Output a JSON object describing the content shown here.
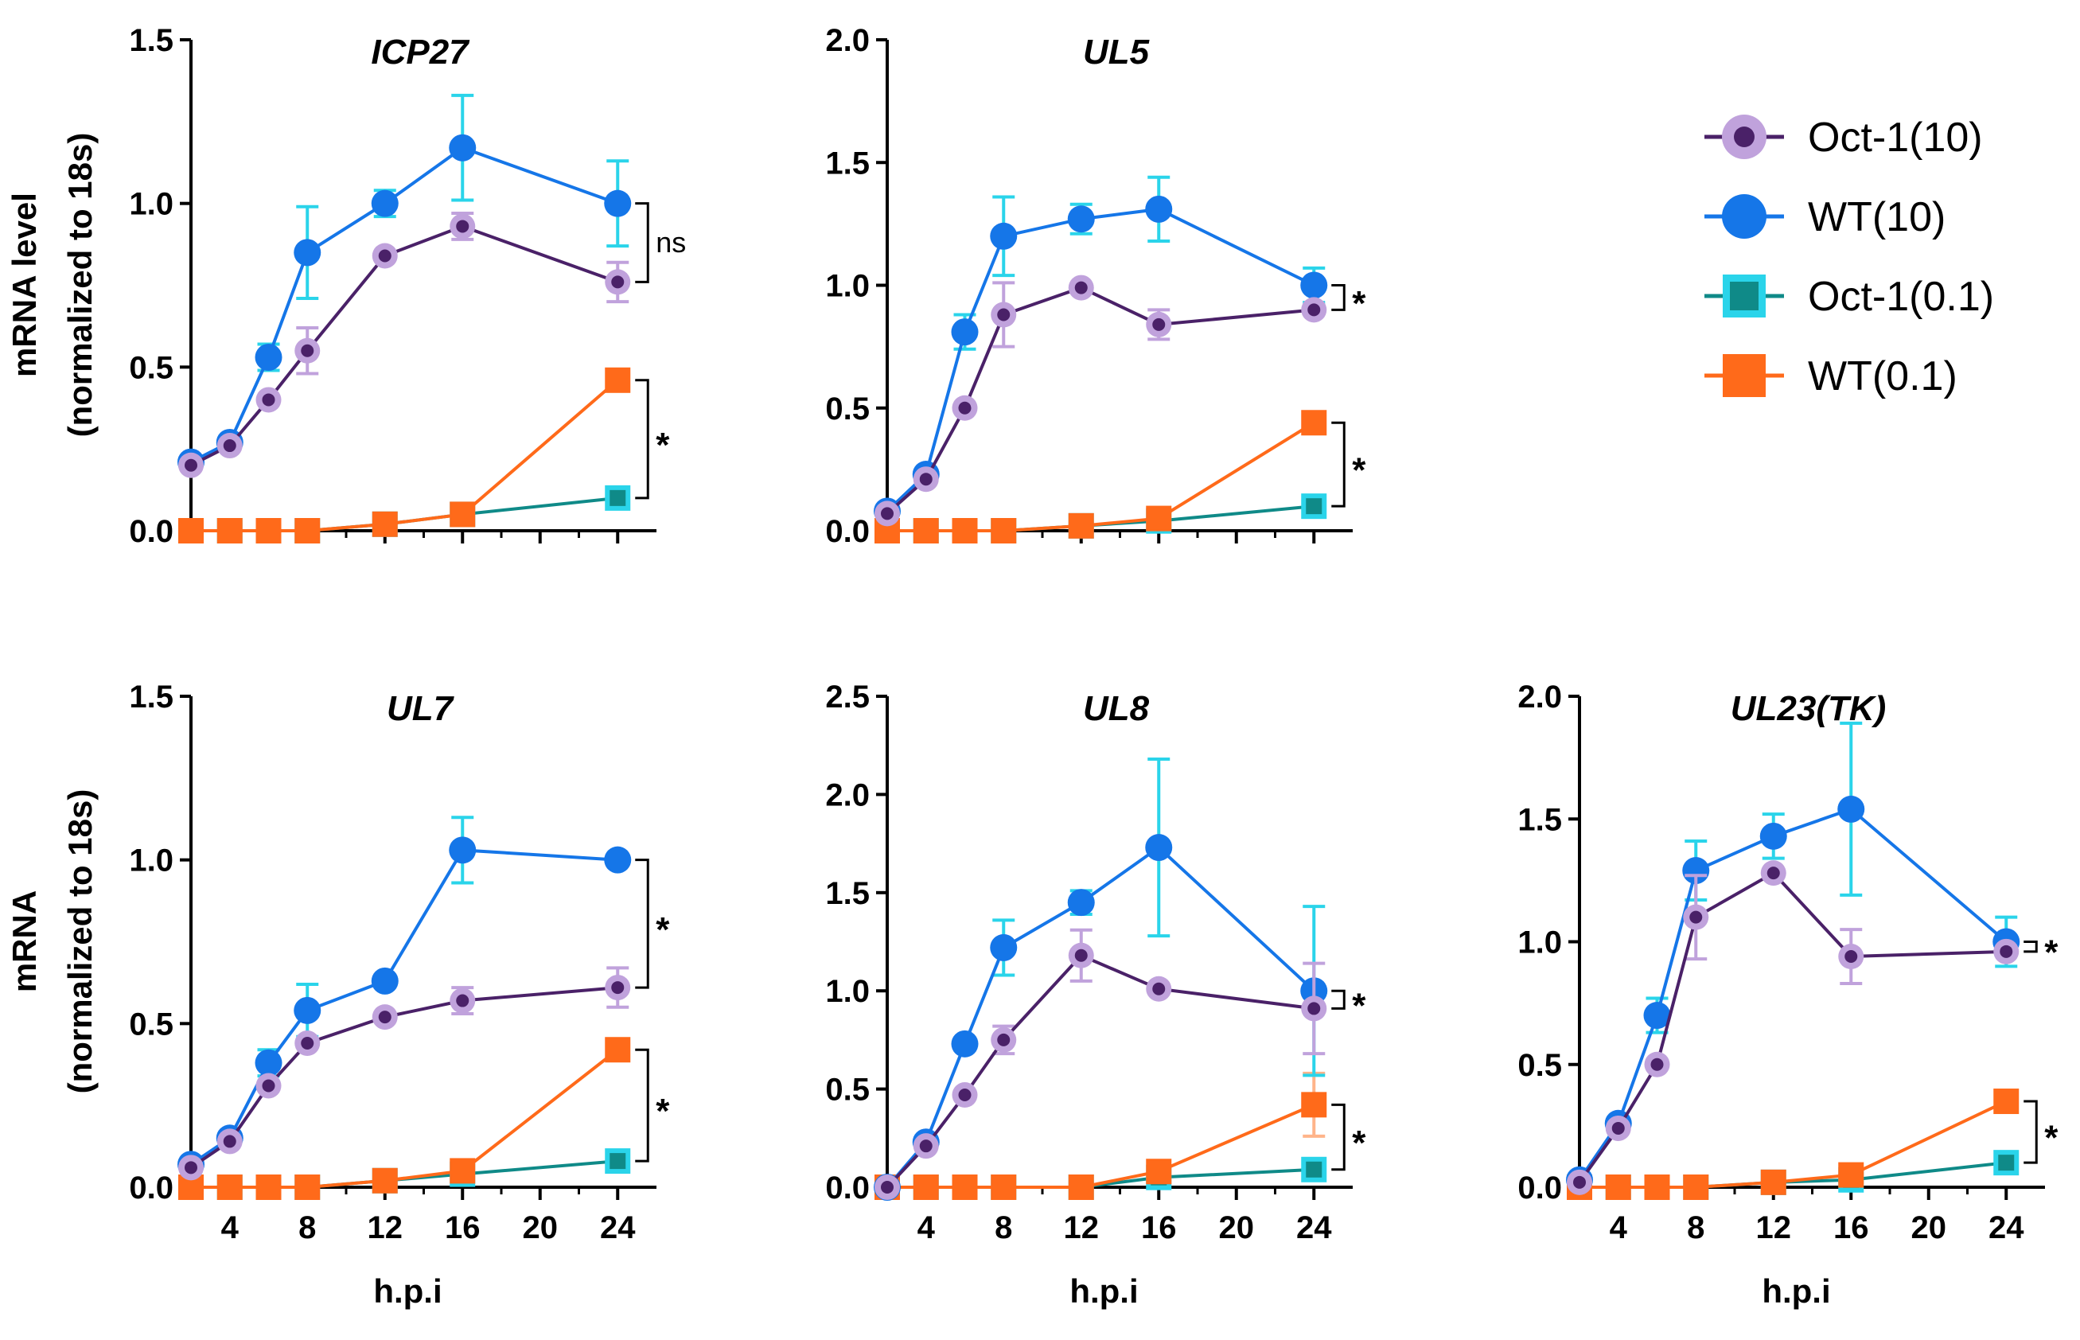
{
  "colors": {
    "oct1_10_fill": "#4a2168",
    "oct1_10_ring": "#c0a2dc",
    "oct1_10_line": "#4a2168",
    "oct1_10_err": "#c0a2dc",
    "wt10": "#1576e8",
    "wt10_err": "#2ad4ea",
    "oct1_01_fill": "#0f8a88",
    "oct1_01_ring": "#2ad4ea",
    "oct1_01_line": "#0f8a88",
    "wt01": "#ff6a1a",
    "axis": "#000000"
  },
  "legend": [
    {
      "key": "oct1_10",
      "label": "Oct-1(10)"
    },
    {
      "key": "wt10",
      "label": "WT(10)"
    },
    {
      "key": "oct1_01",
      "label": "Oct-1(0.1)"
    },
    {
      "key": "wt01",
      "label": "WT(0.1)"
    }
  ],
  "y_titles": [
    {
      "row": 0,
      "line1": "mRNA level",
      "line2": "(normalized to 18s)"
    },
    {
      "row": 1,
      "line1": "mRNA",
      "line2": "(normalized to 18s)"
    }
  ],
  "chart_data": [
    {
      "type": "line",
      "title": "ICP27",
      "row": 0,
      "col": 0,
      "x": [
        2,
        4,
        6,
        8,
        12,
        16,
        24
      ],
      "xlim": [
        2,
        26
      ],
      "xticks": [
        4,
        8,
        12,
        16,
        20,
        24
      ],
      "xlabel": "",
      "ylim": [
        0,
        1.5
      ],
      "yticks": [
        0.0,
        0.5,
        1.0,
        1.5
      ],
      "ytick_labels": [
        "0.0",
        "0.5",
        "1.0",
        "1.5"
      ],
      "series": [
        {
          "key": "oct1_01",
          "name": "Oct-1(0.1)",
          "values": [
            0.0,
            0.0,
            0.0,
            0.0,
            0.02,
            0.05,
            0.1
          ],
          "err": [
            0,
            0,
            0,
            0,
            0,
            0,
            0
          ]
        },
        {
          "key": "wt01",
          "name": "WT(0.1)",
          "values": [
            0.0,
            0.0,
            0.0,
            0.0,
            0.02,
            0.05,
            0.46
          ],
          "err": [
            0,
            0,
            0,
            0,
            0,
            0,
            0
          ]
        },
        {
          "key": "wt10",
          "name": "WT(10)",
          "values": [
            0.21,
            0.27,
            0.53,
            0.85,
            1.0,
            1.17,
            1.0
          ],
          "err": [
            0,
            0,
            0.04,
            0.14,
            0.04,
            0.16,
            0.13
          ]
        },
        {
          "key": "oct1_10",
          "name": "Oct-1(10)",
          "values": [
            0.2,
            0.26,
            0.4,
            0.55,
            0.84,
            0.93,
            0.76
          ],
          "err": [
            0,
            0,
            0,
            0.07,
            0,
            0.04,
            0.06
          ]
        }
      ],
      "brackets": [
        {
          "x": 24,
          "y1": 0.76,
          "y2": 1.0,
          "label": "ns"
        },
        {
          "x": 24,
          "y1": 0.1,
          "y2": 0.46,
          "label": "*"
        }
      ]
    },
    {
      "type": "line",
      "title": "UL5",
      "row": 0,
      "col": 1,
      "x": [
        2,
        4,
        6,
        8,
        12,
        16,
        24
      ],
      "xlim": [
        2,
        26
      ],
      "xticks": [
        4,
        8,
        12,
        16,
        20,
        24
      ],
      "xlabel": "",
      "ylim": [
        0,
        2.0
      ],
      "yticks": [
        0.0,
        0.5,
        1.0,
        1.5,
        2.0
      ],
      "ytick_labels": [
        "0.0",
        "0.5",
        "1.0",
        "1.5",
        "2.0"
      ],
      "series": [
        {
          "key": "oct1_01",
          "name": "Oct-1(0.1)",
          "values": [
            0.0,
            0.0,
            0.0,
            0.0,
            0.02,
            0.04,
            0.1
          ],
          "err": [
            0,
            0,
            0,
            0,
            0,
            0,
            0
          ]
        },
        {
          "key": "wt01",
          "name": "WT(0.1)",
          "values": [
            0.0,
            0.0,
            0.0,
            0.0,
            0.02,
            0.05,
            0.44
          ],
          "err": [
            0,
            0,
            0,
            0,
            0,
            0,
            0
          ]
        },
        {
          "key": "wt10",
          "name": "WT(10)",
          "values": [
            0.08,
            0.23,
            0.81,
            1.2,
            1.27,
            1.31,
            1.0
          ],
          "err": [
            0,
            0,
            0.07,
            0.16,
            0.06,
            0.13,
            0.07
          ]
        },
        {
          "key": "oct1_10",
          "name": "Oct-1(10)",
          "values": [
            0.07,
            0.21,
            0.5,
            0.88,
            0.99,
            0.84,
            0.9
          ],
          "err": [
            0,
            0,
            0,
            0.13,
            0,
            0.06,
            0
          ]
        }
      ],
      "brackets": [
        {
          "x": 24,
          "y1": 0.9,
          "y2": 1.0,
          "label": "*"
        },
        {
          "x": 24,
          "y1": 0.1,
          "y2": 0.44,
          "label": "*"
        }
      ]
    },
    {
      "type": "line",
      "title": "UL7",
      "row": 1,
      "col": 0,
      "x": [
        2,
        4,
        6,
        8,
        12,
        16,
        24
      ],
      "xlim": [
        2,
        26
      ],
      "xticks": [
        4,
        8,
        12,
        16,
        20,
        24
      ],
      "xlabel": "h.p.i",
      "ylim": [
        0,
        1.5
      ],
      "yticks": [
        0.0,
        0.5,
        1.0,
        1.5
      ],
      "ytick_labels": [
        "0.0",
        "0.5",
        "1.0",
        "1.5"
      ],
      "series": [
        {
          "key": "oct1_01",
          "name": "Oct-1(0.1)",
          "values": [
            0.0,
            0.0,
            0.0,
            0.0,
            0.02,
            0.04,
            0.08
          ],
          "err": [
            0,
            0,
            0,
            0,
            0,
            0,
            0
          ]
        },
        {
          "key": "wt01",
          "name": "WT(0.1)",
          "values": [
            0.0,
            0.0,
            0.0,
            0.0,
            0.02,
            0.05,
            0.42
          ],
          "err": [
            0,
            0,
            0,
            0,
            0,
            0,
            0
          ]
        },
        {
          "key": "wt10",
          "name": "WT(10)",
          "values": [
            0.07,
            0.15,
            0.38,
            0.54,
            0.63,
            1.03,
            1.0
          ],
          "err": [
            0,
            0,
            0.04,
            0.08,
            0,
            0.1,
            0
          ]
        },
        {
          "key": "oct1_10",
          "name": "Oct-1(10)",
          "values": [
            0.06,
            0.14,
            0.31,
            0.44,
            0.52,
            0.57,
            0.61
          ],
          "err": [
            0,
            0,
            0,
            0,
            0,
            0.04,
            0.06
          ]
        }
      ],
      "brackets": [
        {
          "x": 24,
          "y1": 0.61,
          "y2": 1.0,
          "label": "*"
        },
        {
          "x": 24,
          "y1": 0.08,
          "y2": 0.42,
          "label": "*"
        }
      ]
    },
    {
      "type": "line",
      "title": "UL8",
      "row": 1,
      "col": 1,
      "x": [
        2,
        4,
        6,
        8,
        12,
        16,
        24
      ],
      "xlim": [
        2,
        26
      ],
      "xticks": [
        4,
        8,
        12,
        16,
        20,
        24
      ],
      "xlabel": "h.p.i",
      "ylim": [
        0,
        2.5
      ],
      "yticks": [
        0.0,
        0.5,
        1.0,
        1.5,
        2.0,
        2.5
      ],
      "ytick_labels": [
        "0.0",
        "0.5",
        "1.0",
        "1.5",
        "2.0",
        "2.5"
      ],
      "series": [
        {
          "key": "oct1_01",
          "name": "Oct-1(0.1)",
          "values": [
            0.0,
            0.0,
            0.0,
            0.0,
            0.0,
            0.05,
            0.09
          ],
          "err": [
            0,
            0,
            0,
            0,
            0,
            0,
            0
          ]
        },
        {
          "key": "wt01",
          "name": "WT(0.1)",
          "values": [
            0.0,
            0.0,
            0.0,
            0.0,
            0.0,
            0.08,
            0.42
          ],
          "err": [
            0,
            0,
            0,
            0,
            0,
            0,
            0.16
          ]
        },
        {
          "key": "wt10",
          "name": "WT(10)",
          "values": [
            0.0,
            0.23,
            0.73,
            1.22,
            1.45,
            1.73,
            1.0
          ],
          "err": [
            0,
            0,
            0,
            0.14,
            0.06,
            0.45,
            0.43
          ]
        },
        {
          "key": "oct1_10",
          "name": "Oct-1(10)",
          "values": [
            0.0,
            0.21,
            0.47,
            0.75,
            1.18,
            1.01,
            0.91
          ],
          "err": [
            0,
            0,
            0,
            0.07,
            0.13,
            0,
            0.23
          ]
        }
      ],
      "brackets": [
        {
          "x": 24,
          "y1": 0.91,
          "y2": 1.0,
          "label": "*"
        },
        {
          "x": 24,
          "y1": 0.09,
          "y2": 0.42,
          "label": "*"
        }
      ]
    },
    {
      "type": "line",
      "title": "UL23(TK)",
      "row": 1,
      "col": 2,
      "x": [
        2,
        4,
        6,
        8,
        12,
        16,
        24
      ],
      "xlim": [
        2,
        26
      ],
      "xticks": [
        4,
        8,
        12,
        16,
        20,
        24
      ],
      "xlabel": "h.p.i",
      "ylim": [
        0,
        2.0
      ],
      "yticks": [
        0.0,
        0.5,
        1.0,
        1.5,
        2.0
      ],
      "ytick_labels": [
        "0.0",
        "0.5",
        "1.0",
        "1.5",
        "2.0"
      ],
      "series": [
        {
          "key": "oct1_01",
          "name": "Oct-1(0.1)",
          "values": [
            0.0,
            0.0,
            0.0,
            0.0,
            0.02,
            0.03,
            0.1
          ],
          "err": [
            0,
            0,
            0,
            0,
            0,
            0,
            0
          ]
        },
        {
          "key": "wt01",
          "name": "WT(0.1)",
          "values": [
            0.0,
            0.0,
            0.0,
            0.0,
            0.02,
            0.05,
            0.35
          ],
          "err": [
            0,
            0,
            0,
            0,
            0,
            0,
            0
          ]
        },
        {
          "key": "wt10",
          "name": "WT(10)",
          "values": [
            0.03,
            0.26,
            0.7,
            1.29,
            1.43,
            1.54,
            1.0
          ],
          "err": [
            0,
            0,
            0.07,
            0.12,
            0.09,
            0.35,
            0.1
          ]
        },
        {
          "key": "oct1_10",
          "name": "Oct-1(10)",
          "values": [
            0.02,
            0.24,
            0.5,
            1.1,
            1.28,
            0.94,
            0.96
          ],
          "err": [
            0,
            0,
            0,
            0.17,
            0,
            0.11,
            0
          ]
        }
      ],
      "brackets": [
        {
          "x": 24,
          "y1": 0.96,
          "y2": 1.0,
          "label": "*"
        },
        {
          "x": 24,
          "y1": 0.1,
          "y2": 0.35,
          "label": "*"
        }
      ]
    }
  ]
}
